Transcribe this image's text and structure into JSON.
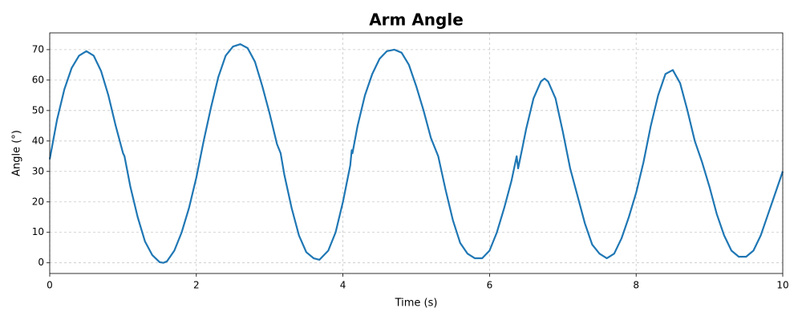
{
  "chart_data": {
    "type": "line",
    "title": "Arm Angle",
    "x_label": "Time (s)",
    "y_label": "Angle (°)",
    "x": [
      0,
      0.1,
      0.2,
      0.3,
      0.4,
      0.5,
      0.6,
      0.7,
      0.8,
      0.9,
      1.0,
      1.02,
      1.1,
      1.2,
      1.3,
      1.4,
      1.5,
      1.55,
      1.6,
      1.7,
      1.8,
      1.9,
      2.0,
      2.1,
      2.2,
      2.3,
      2.4,
      2.5,
      2.6,
      2.7,
      2.8,
      2.9,
      3.0,
      3.1,
      3.15,
      3.2,
      3.3,
      3.4,
      3.5,
      3.6,
      3.68,
      3.8,
      3.9,
      4.0,
      4.1,
      4.12,
      4.13,
      4.2,
      4.3,
      4.4,
      4.5,
      4.6,
      4.7,
      4.8,
      4.9,
      5.0,
      5.1,
      5.2,
      5.3,
      5.4,
      5.5,
      5.6,
      5.7,
      5.8,
      5.9,
      6.0,
      6.1,
      6.2,
      6.3,
      6.37,
      6.39,
      6.45,
      6.5,
      6.6,
      6.7,
      6.75,
      6.8,
      6.9,
      7.0,
      7.1,
      7.2,
      7.3,
      7.4,
      7.5,
      7.6,
      7.7,
      7.8,
      7.9,
      8.0,
      8.1,
      8.2,
      8.3,
      8.4,
      8.5,
      8.6,
      8.7,
      8.8,
      8.9,
      9.0,
      9.1,
      9.2,
      9.3,
      9.4,
      9.5,
      9.6,
      9.7,
      9.8,
      9.9,
      10.0
    ],
    "values": [
      34,
      47,
      57,
      64,
      68,
      69.5,
      68,
      63,
      55,
      45,
      36,
      35,
      25,
      15,
      7,
      2.5,
      0.2,
      0,
      0.5,
      4,
      10,
      18,
      28,
      40,
      51,
      61,
      68,
      71,
      71.8,
      70.5,
      66,
      58,
      49,
      39,
      36,
      29,
      18,
      9,
      3.5,
      1.5,
      1,
      4,
      10,
      20,
      32,
      37,
      36,
      45,
      55,
      62,
      67,
      69.5,
      70,
      69,
      65,
      58,
      50,
      41,
      35,
      24,
      14,
      6.5,
      3,
      1.5,
      1.5,
      4,
      10,
      18,
      27,
      35,
      31,
      38,
      44,
      54,
      59.5,
      60.5,
      59.5,
      54,
      43,
      31,
      22,
      13,
      6,
      3,
      1.5,
      3,
      8,
      15,
      23,
      33,
      45,
      55,
      62,
      63.3,
      59,
      50,
      40,
      33,
      25,
      16,
      9,
      4,
      2,
      2,
      4,
      9,
      16,
      23,
      30
    ],
    "color": "#1f77b4",
    "xlim": [
      0,
      10
    ],
    "xticks": [
      0,
      2,
      4,
      6,
      8,
      10
    ],
    "ylim": [
      -3.5,
      75.5
    ],
    "yticks": [
      0,
      10,
      20,
      30,
      40,
      50,
      60,
      70
    ],
    "grid": true
  }
}
